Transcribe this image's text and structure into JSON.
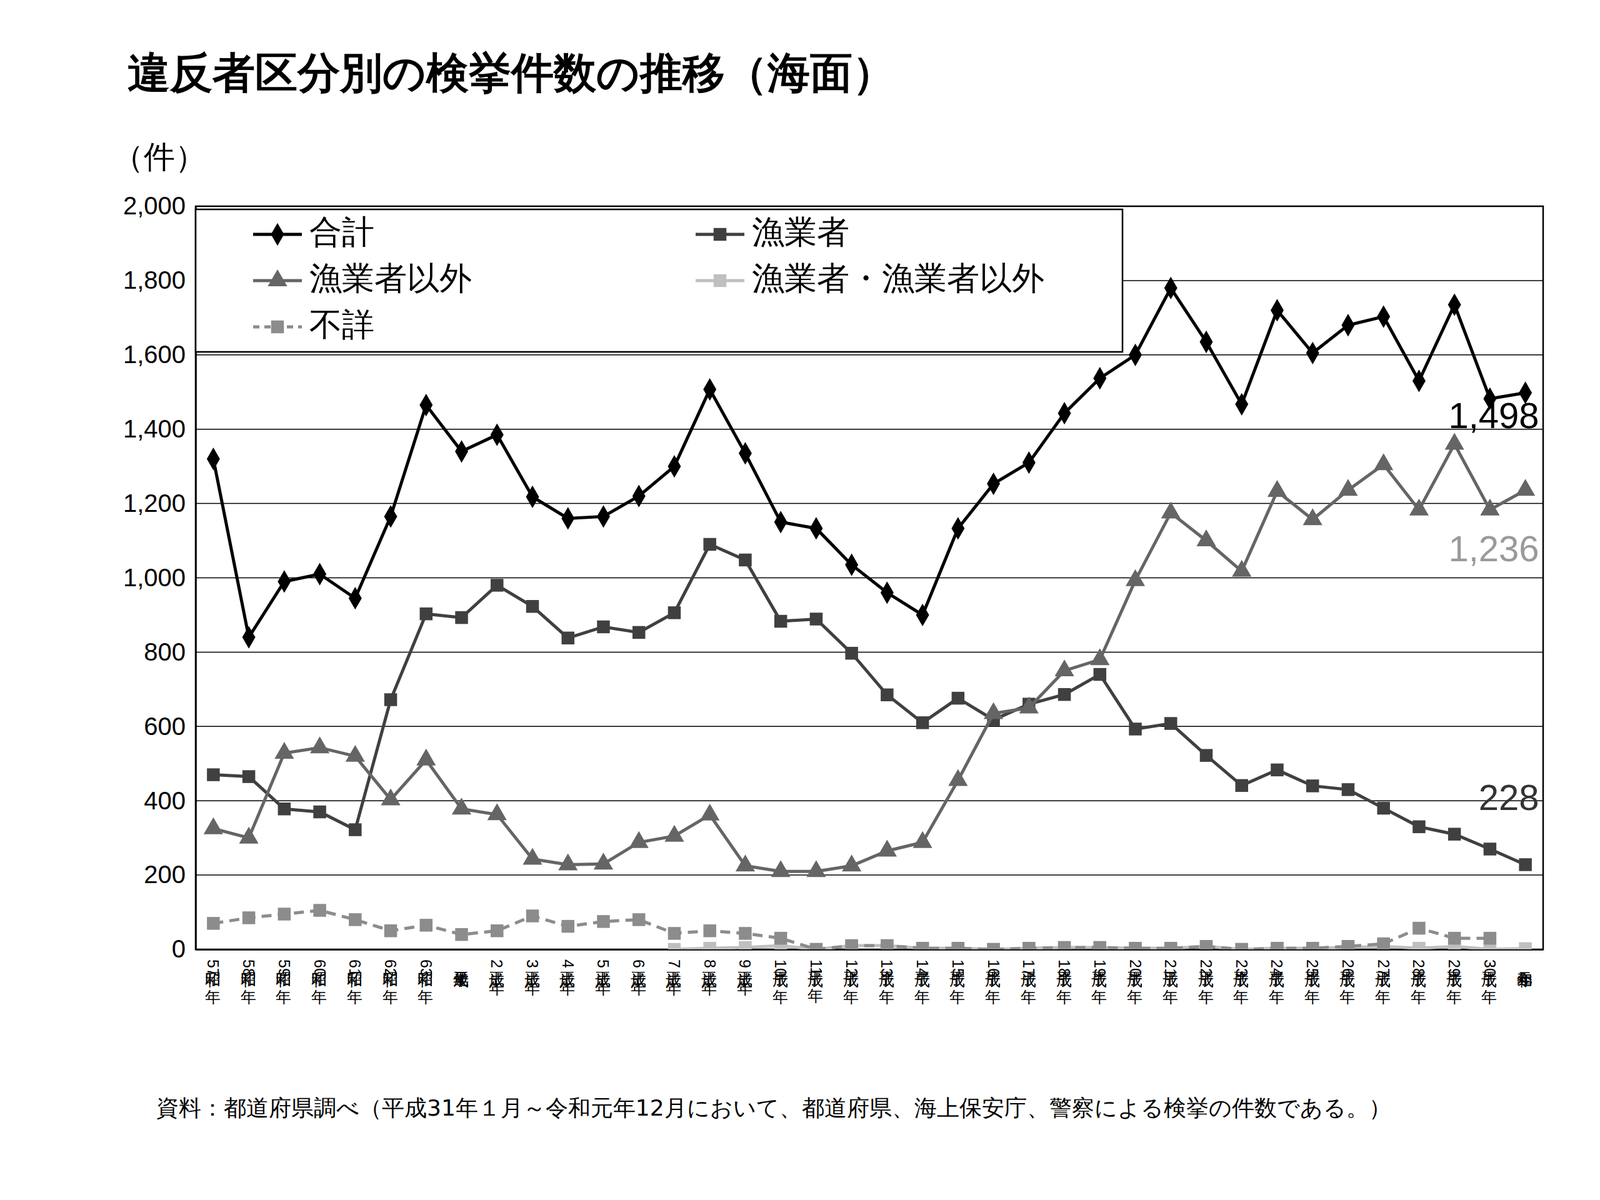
{
  "chart_data": {
    "type": "line",
    "title": "違反者区分別の検挙件数の推移（海面）",
    "y_label": "（件）",
    "source": "資料：都道府県調べ（平成31年１月～令和元年12月において、都道府県、海上保安庁、警察による検挙の件数である。）",
    "categories": [
      "昭和57年",
      "昭和58年",
      "昭和59年",
      "昭和60年",
      "昭和61年",
      "昭和62年",
      "昭和63年",
      "平成元年",
      "平成2年",
      "平成3年",
      "平成4年",
      "平成5年",
      "平成6年",
      "平成7年",
      "平成8年",
      "平成9年",
      "平成10年",
      "平成11年",
      "平成12年",
      "平成13年",
      "平成14年",
      "平成15年",
      "平成16年",
      "平成17年",
      "平成18年",
      "平成19年",
      "平成20年",
      "平成21年",
      "平成22年",
      "平成23年",
      "平成24年",
      "平成25年",
      "平成26年",
      "平成27年",
      "平成28年",
      "平成29年",
      "平成30年",
      "令和元年"
    ],
    "series": [
      {
        "name": "合計",
        "color": "#000000",
        "marker": "diamond",
        "line_style": "solid",
        "values": [
          1320,
          840,
          990,
          1010,
          945,
          1165,
          1465,
          1340,
          1385,
          1218,
          1160,
          1165,
          1220,
          1300,
          1507,
          1335,
          1150,
          1133,
          1035,
          960,
          900,
          1133,
          1253,
          1310,
          1443,
          1537,
          1600,
          1780,
          1635,
          1467,
          1720,
          1605,
          1680,
          1703,
          1530,
          1735,
          1482,
          1498
        ]
      },
      {
        "name": "漁業者",
        "color": "#404040",
        "marker": "square",
        "line_style": "solid",
        "values": [
          470,
          465,
          378,
          370,
          322,
          672,
          903,
          893,
          980,
          923,
          838,
          868,
          853,
          906,
          1090,
          1048,
          883,
          889,
          797,
          685,
          610,
          676,
          618,
          660,
          686,
          740,
          593,
          608,
          522,
          441,
          483,
          440,
          430,
          380,
          330,
          310,
          270,
          228
        ]
      },
      {
        "name": "漁業者以外",
        "color": "#656565",
        "marker": "triangle",
        "line_style": "solid",
        "values": [
          325,
          300,
          528,
          543,
          520,
          403,
          510,
          378,
          363,
          243,
          228,
          230,
          288,
          305,
          362,
          225,
          210,
          210,
          225,
          265,
          288,
          455,
          635,
          650,
          750,
          780,
          993,
          1175,
          1100,
          1018,
          1233,
          1157,
          1236,
          1305,
          1183,
          1360,
          1183,
          1236
        ]
      },
      {
        "name": "漁業者・漁業者以外",
        "color": "#bfbfbf",
        "marker": "square",
        "line_style": "solid",
        "values": [
          null,
          null,
          null,
          null,
          null,
          null,
          null,
          null,
          null,
          null,
          null,
          null,
          null,
          0,
          3,
          5,
          10,
          0,
          10,
          10,
          3,
          3,
          0,
          3,
          5,
          5,
          3,
          3,
          8,
          0,
          3,
          3,
          5,
          8,
          3,
          8,
          0,
          2
        ]
      },
      {
        "name": "不詳",
        "color": "#8c8c8c",
        "marker": "square",
        "line_style": "dashed",
        "values": [
          70,
          85,
          95,
          105,
          80,
          50,
          65,
          40,
          50,
          90,
          62,
          75,
          80,
          43,
          50,
          43,
          30,
          0,
          10,
          10,
          3,
          3,
          0,
          3,
          5,
          5,
          3,
          3,
          8,
          0,
          3,
          3,
          8,
          15,
          57,
          30,
          30,
          null
        ]
      }
    ],
    "ylim": [
      0,
      2000
    ],
    "yticks": [
      0,
      200,
      400,
      600,
      800,
      {
        "value": 1000,
        "label": "1,000"
      },
      {
        "value": 1200,
        "label": "1,200"
      },
      {
        "value": 1400,
        "label": "1,400"
      },
      {
        "value": 1600,
        "label": "1,600"
      },
      {
        "value": 1800,
        "label": "1,800"
      },
      {
        "value": 2000,
        "label": "2,000"
      }
    ],
    "grid": true,
    "legend": "upper left",
    "annotations": [
      {
        "text": "1,498",
        "x": "令和元年",
        "y": 1498,
        "color": "#000000"
      },
      {
        "text": "1,236",
        "x": "令和元年",
        "y": 1236,
        "color": "#9a9a9a"
      },
      {
        "text": "228",
        "x": "令和元年",
        "y": 228,
        "color": "#333333"
      }
    ]
  }
}
